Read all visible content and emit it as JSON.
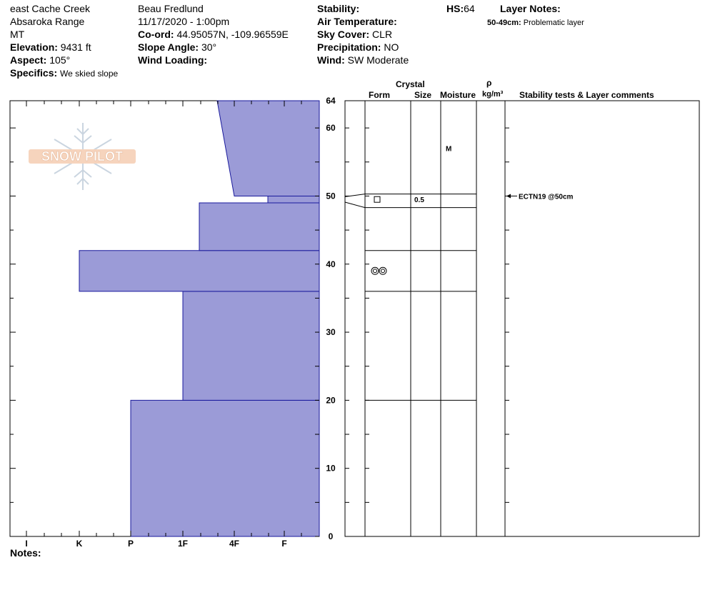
{
  "header": {
    "location": "east Cache Creek",
    "range": "Absaroka Range",
    "state": "MT",
    "elevation_label": "Elevation:",
    "elevation_value": "9431 ft",
    "aspect_label": "Aspect:",
    "aspect_value": "105°",
    "specifics_label": "Specifics:",
    "specifics_value": "We skied slope",
    "observer": "Beau  Fredlund",
    "datetime": "11/17/2020 - 1:00pm",
    "coord_label": "Co-ord:",
    "coord_value": "44.95057N, -109.96559E",
    "slope_label": "Slope Angle:",
    "slope_value": "30°",
    "wind_loading_label": "Wind Loading:",
    "wind_loading_value": "",
    "stability_label": "Stability:",
    "stability_value": "",
    "air_temp_label": "Air Temperature:",
    "air_temp_value": "",
    "sky_label": "Sky Cover:",
    "sky_value": "CLR",
    "precip_label": "Precipitation:",
    "precip_value": "NO",
    "wind_label": "Wind:",
    "wind_value": "SW Moderate",
    "hs_label": "HS:",
    "hs_value": "64",
    "layer_notes_label": "Layer Notes:",
    "layer_note_range": "50-49cm:",
    "layer_note_text": "Problematic layer"
  },
  "logo": {
    "text": "SNOW PILOT"
  },
  "columns": {
    "crystal": "Crystal",
    "form": "Form",
    "size": "Size",
    "moisture": "Moisture",
    "rho": "ρ",
    "density_unit": "kg/m³",
    "stability": "Stability tests & Layer comments"
  },
  "notes_label": "Notes:",
  "chart_data": {
    "type": "hardness_profile",
    "y_ticks": [
      0,
      10,
      20,
      30,
      40,
      50,
      60,
      64
    ],
    "ylim": [
      0,
      64
    ],
    "x_categories": [
      "I",
      "K",
      "P",
      "1F",
      "4F",
      "F"
    ],
    "layers": [
      {
        "bottom": 0,
        "top": 20,
        "hardness_top": "P",
        "hardness_bottom": "P"
      },
      {
        "bottom": 20,
        "top": 36,
        "hardness_top": "1F",
        "hardness_bottom": "1F"
      },
      {
        "bottom": 36,
        "top": 42,
        "hardness_top": "K",
        "hardness_bottom": "K"
      },
      {
        "bottom": 42,
        "top": 49,
        "hardness_top": "1F+",
        "hardness_bottom": "1F+"
      },
      {
        "bottom": 49,
        "top": 50,
        "hardness_top": "F+",
        "hardness_bottom": "F+"
      },
      {
        "bottom": 50,
        "top": 64,
        "hardness_top": "1F-",
        "hardness_bottom": "4F"
      }
    ],
    "layer_boundaries": [
      20,
      36,
      42,
      49,
      50,
      64
    ],
    "crystal_rows": [
      {
        "height": 49.5,
        "form": "faceted",
        "size": "0.5",
        "moisture": ""
      },
      {
        "height": 39,
        "form": "rounded",
        "size": "",
        "moisture": ""
      },
      {
        "height": 57,
        "form": "",
        "size": "",
        "moisture": "M"
      }
    ],
    "stability_tests": [
      {
        "height": 50,
        "text": "ECTN19 @50cm"
      }
    ]
  }
}
